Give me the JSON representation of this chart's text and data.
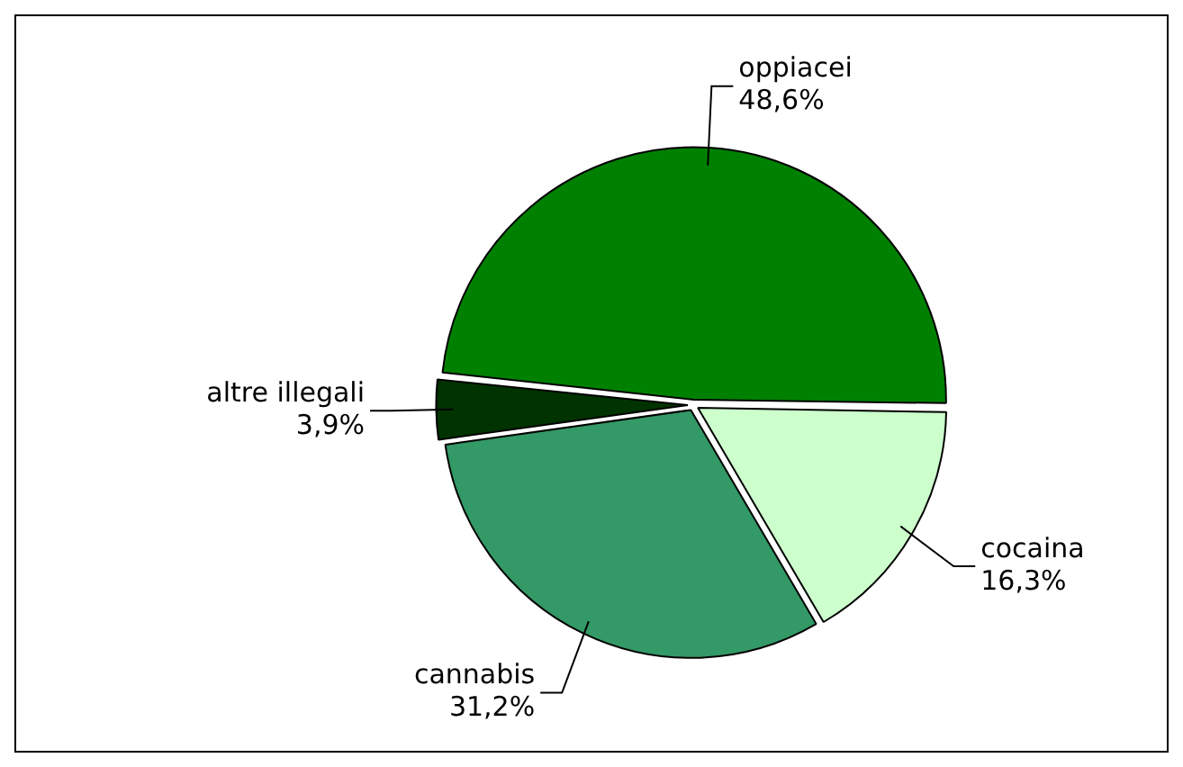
{
  "chart_data": {
    "type": "pie",
    "categories": [
      "oppiacei",
      "cocaina",
      "cannabis",
      "altre illegali"
    ],
    "values": [
      48.6,
      16.3,
      31.2,
      3.9
    ],
    "value_labels": [
      "48,6%",
      "16,3%",
      "31,2%",
      "3,9%"
    ],
    "colors": [
      "#008000",
      "#ccffcc",
      "#339966",
      "#003300"
    ],
    "legend": false
  }
}
